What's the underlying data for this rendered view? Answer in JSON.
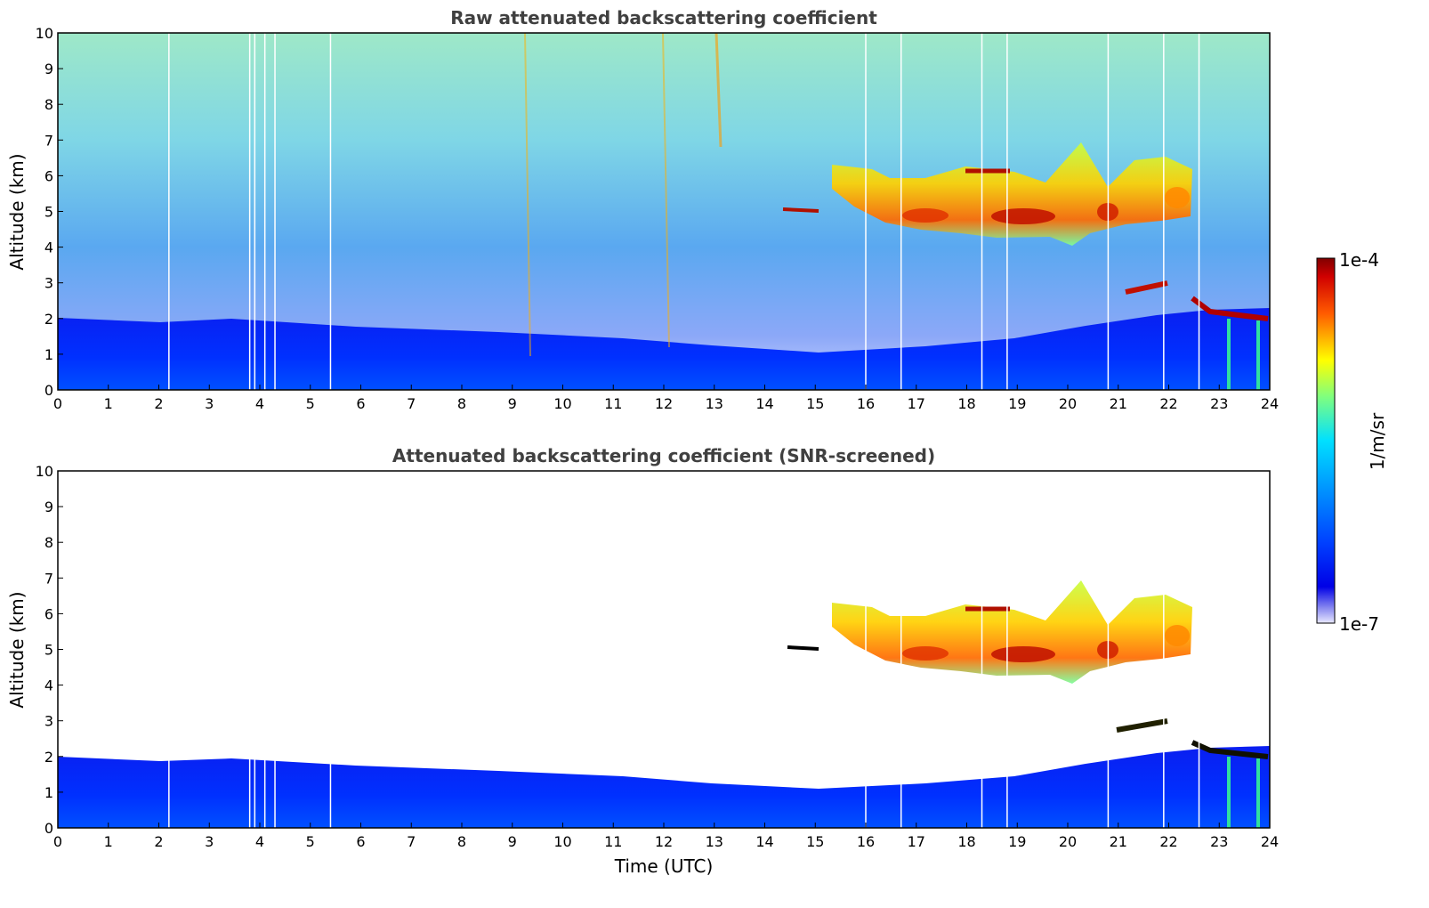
{
  "chart_data": [
    {
      "type": "heatmap",
      "title": "Raw attenuated backscattering coefficient",
      "xlabel": "",
      "ylabel": "Altitude (km)",
      "xlim": [
        0,
        24
      ],
      "ylim": [
        0,
        10
      ],
      "x_ticks": [
        "0",
        "1",
        "2",
        "3",
        "4",
        "5",
        "6",
        "7",
        "8",
        "9",
        "10",
        "11",
        "12",
        "13",
        "14",
        "15",
        "16",
        "17",
        "18",
        "19",
        "20",
        "21",
        "22",
        "23",
        "24"
      ],
      "y_ticks": [
        "0",
        "1",
        "2",
        "3",
        "4",
        "5",
        "6",
        "7",
        "8",
        "9",
        "10"
      ],
      "grid": false,
      "regions": [
        {
          "name": "boundary layer",
          "x": [
            0,
            24
          ],
          "y_top": [
            2.0,
            1.9,
            1.7,
            1.6,
            1.5,
            1.4,
            1.3,
            1.4,
            1.6,
            1.8,
            2.0,
            2.1
          ],
          "level": 0.2
        },
        {
          "name": "mid cloud",
          "x_start": 15.3,
          "x_end": 22.5,
          "y": [
            4.3,
            6.3
          ],
          "level": 0.72
        },
        {
          "name": "low cloud",
          "x_start": 21.0,
          "x_end": 24.0,
          "y": [
            2.0,
            3.0
          ],
          "level": 0.95
        }
      ],
      "missing_profiles_utc": [
        2.2,
        3.8,
        3.9,
        4.1,
        4.3,
        5.4,
        16.0,
        16.7,
        18.3,
        18.8,
        20.8,
        21.9,
        22.6
      ]
    },
    {
      "type": "heatmap",
      "title": "Attenuated backscattering coefficient (SNR-screened)",
      "xlabel": "Time (UTC)",
      "ylabel": "Altitude (km)",
      "xlim": [
        0,
        24
      ],
      "ylim": [
        0,
        10
      ],
      "x_ticks": [
        "0",
        "1",
        "2",
        "3",
        "4",
        "5",
        "6",
        "7",
        "8",
        "9",
        "10",
        "11",
        "12",
        "13",
        "14",
        "15",
        "16",
        "17",
        "18",
        "19",
        "20",
        "21",
        "22",
        "23",
        "24"
      ],
      "y_ticks": [
        "0",
        "1",
        "2",
        "3",
        "4",
        "5",
        "6",
        "7",
        "8",
        "9",
        "10"
      ],
      "grid": false
    }
  ],
  "colorbar": {
    "label": "1/m/sr",
    "max_label": "1e-4",
    "min_label": "1e-7",
    "colormap": "jet"
  }
}
